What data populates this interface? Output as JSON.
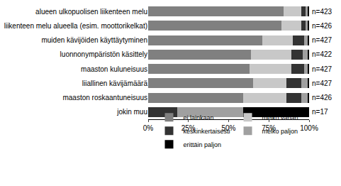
{
  "chart_data": {
    "type": "bar",
    "orientation": "horizontal",
    "stacked": true,
    "grid": false,
    "legend": "bottom",
    "categories": [
      "alueen ulkopuolisen liikenteen melu",
      "liikenteen melu alueella (esim. moottorikelkat)",
      "muiden kävijöiden käyttäytyminen",
      "luonnonympäristön käsittely",
      "maaston kuluneisuus",
      "liiallinen kävijämäärä",
      "maaston roskaantuneisuus",
      "jokin muu"
    ],
    "annotations": [
      "n=423",
      "n=426",
      "n=427",
      "n=422",
      "n=427",
      "n=427",
      "n=426",
      "n=17"
    ],
    "series": [
      {
        "name": "ei lainkaan",
        "color": "#808080",
        "values": [
          84,
          83,
          71,
          64,
          63,
          65,
          59,
          0
        ]
      },
      {
        "name": "melko vähän",
        "color": "#c8c8c8",
        "values": [
          11,
          12,
          19,
          25,
          26,
          21,
          27,
          0
        ]
      },
      {
        "name": "keskinkertaisesti",
        "color": "#333333",
        "values": [
          3,
          3,
          7,
          7,
          8,
          9,
          9,
          18
        ]
      },
      {
        "name": "melko paljon",
        "color": "#a0a0a0",
        "values": [
          1,
          1,
          2,
          3,
          2,
          4,
          4,
          41
        ]
      },
      {
        "name": "erittäin paljon",
        "color": "#000000",
        "values": [
          1,
          1,
          1,
          1,
          1,
          1,
          1,
          41
        ]
      }
    ],
    "xlim": [
      0,
      100
    ],
    "xticks": [
      {
        "value": 0,
        "label": "0%"
      },
      {
        "value": 25,
        "label": "25%"
      },
      {
        "value": 50,
        "label": "50%"
      },
      {
        "value": 75,
        "label": "75%"
      },
      {
        "value": 100,
        "label": "100%"
      }
    ]
  }
}
